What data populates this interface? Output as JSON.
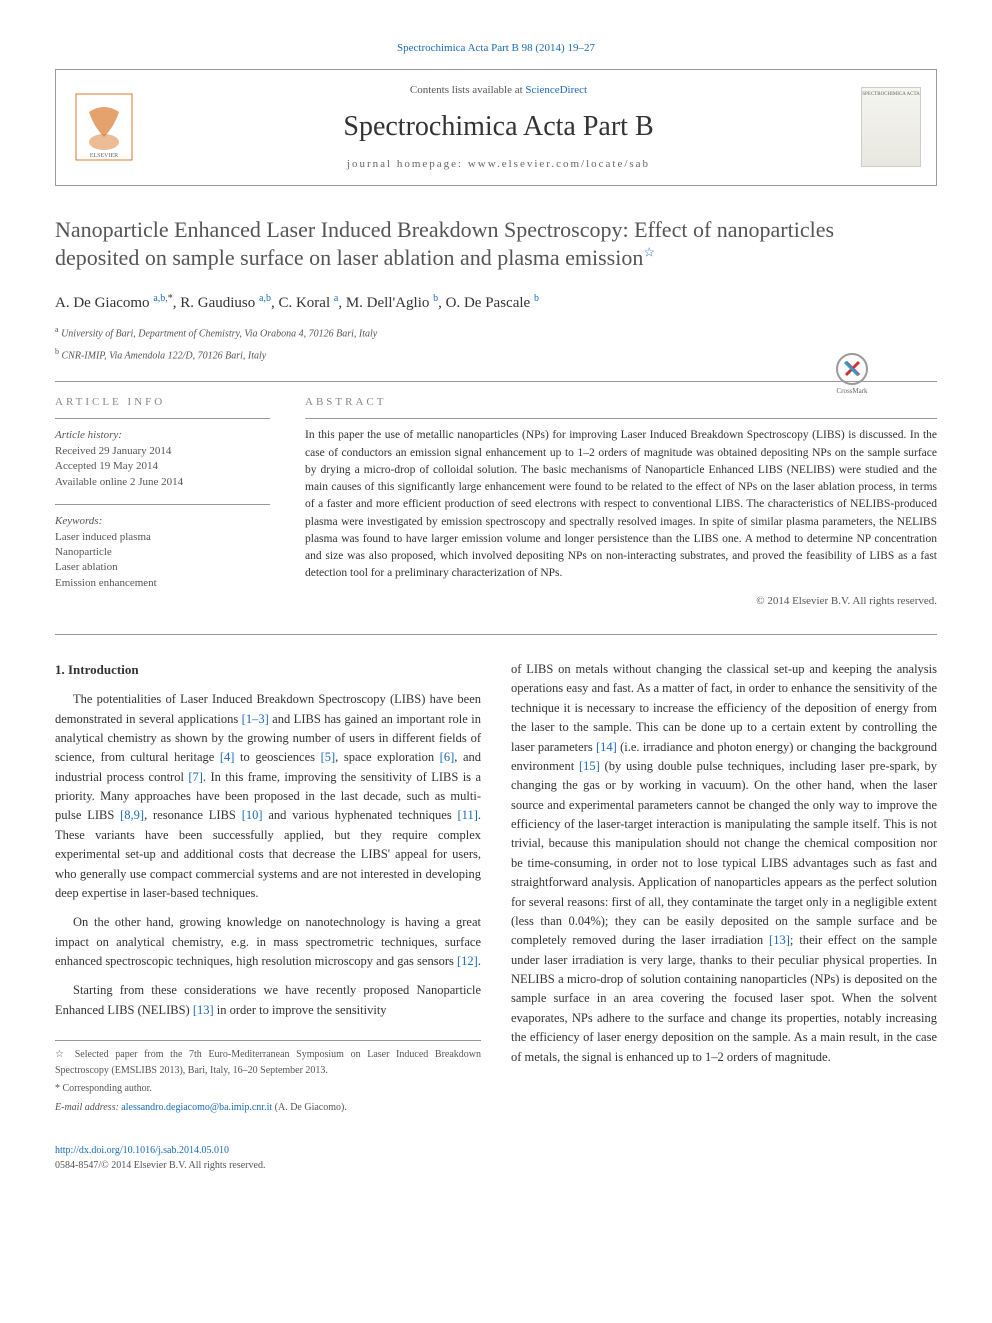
{
  "journal_ref": "Spectrochimica Acta Part B 98 (2014) 19–27",
  "header": {
    "contents_prefix": "Contents lists available at ",
    "contents_link": "ScienceDirect",
    "journal_title": "Spectrochimica Acta Part B",
    "homepage": "journal homepage: www.elsevier.com/locate/sab",
    "cover_label": "SPECTROCHIMICA ACTA"
  },
  "article_title": "Nanoparticle Enhanced Laser Induced Breakdown Spectroscopy: Effect of nanoparticles deposited on sample surface on laser ablation and plasma emission",
  "star_glyph": "☆",
  "authors_line": "A. De Giacomo",
  "authors": [
    {
      "name": "A. De Giacomo",
      "sup": "a,b,",
      "star": "*"
    },
    {
      "name": "R. Gaudiuso",
      "sup": "a,b"
    },
    {
      "name": "C. Koral",
      "sup": "a"
    },
    {
      "name": "M. Dell'Aglio",
      "sup": "b"
    },
    {
      "name": "O. De Pascale",
      "sup": "b"
    }
  ],
  "affiliations": [
    {
      "sup": "a",
      "text": "University of Bari, Department of Chemistry, Via Orabona 4, 70126 Bari, Italy"
    },
    {
      "sup": "b",
      "text": "CNR-IMIP, Via Amendola 122/D, 70126 Bari, Italy"
    }
  ],
  "info": {
    "article_info_heading": "ARTICLE INFO",
    "abstract_heading": "ABSTRACT",
    "history_label": "Article history:",
    "history": [
      "Received 29 January 2014",
      "Accepted 19 May 2014",
      "Available online 2 June 2014"
    ],
    "keywords_label": "Keywords:",
    "keywords": [
      "Laser induced plasma",
      "Nanoparticle",
      "Laser ablation",
      "Emission enhancement"
    ]
  },
  "abstract_text": "In this paper the use of metallic nanoparticles (NPs) for improving Laser Induced Breakdown Spectroscopy (LIBS) is discussed. In the case of conductors an emission signal enhancement up to 1–2 orders of magnitude was obtained depositing NPs on the sample surface by drying a micro-drop of colloidal solution. The basic mechanisms of Nanoparticle Enhanced LIBS (NELIBS) were studied and the main causes of this significantly large enhancement were found to be related to the effect of NPs on the laser ablation process, in terms of a faster and more efficient production of seed electrons with respect to conventional LIBS. The characteristics of NELIBS-produced plasma were investigated by emission spectroscopy and spectrally resolved images. In spite of similar plasma parameters, the NELIBS plasma was found to have larger emission volume and longer persistence than the LIBS one. A method to determine NP concentration and size was also proposed, which involved depositing NPs on non-interacting substrates, and proved the feasibility of LIBS as a fast detection tool for a preliminary characterization of NPs.",
  "copyright": "© 2014 Elsevier B.V. All rights reserved.",
  "intro_heading": "1. Introduction",
  "col1": {
    "p1_a": "The potentialities of Laser Induced Breakdown Spectroscopy (LIBS) have been demonstrated in several applications ",
    "r1": "[1–3]",
    "p1_b": " and LIBS has gained an important role in analytical chemistry as shown by the growing number of users in different fields of science, from cultural heritage ",
    "r2": "[4]",
    "p1_c": " to geosciences ",
    "r3": "[5]",
    "p1_d": ", space exploration ",
    "r4": "[6]",
    "p1_e": ", and industrial process control ",
    "r5": "[7]",
    "p1_f": ". In this frame, improving the sensitivity of LIBS is a priority. Many approaches have been proposed in the last decade, such as multi-pulse LIBS ",
    "r6": "[8,9]",
    "p1_g": ", resonance LIBS ",
    "r7": "[10]",
    "p1_h": " and various hyphenated techniques ",
    "r8": "[11]",
    "p1_i": ". These variants have been successfully applied, but they require complex experimental set-up and additional costs that decrease the LIBS' appeal for users, who generally use compact commercial systems and are not interested in developing deep expertise in laser-based techniques.",
    "p2_a": "On the other hand, growing knowledge on nanotechnology is having a great impact on analytical chemistry, e.g. in mass spectrometric techniques, surface enhanced spectroscopic techniques, high resolution microscopy and gas sensors ",
    "r9": "[12]",
    "p2_b": ".",
    "p3_a": "Starting from these considerations we have recently proposed Nanoparticle Enhanced LIBS (NELIBS) ",
    "r10": "[13]",
    "p3_b": " in order to improve the sensitivity"
  },
  "col2": {
    "p1_a": "of LIBS on metals without changing the classical set-up and keeping the analysis operations easy and fast. As a matter of fact, in order to enhance the sensitivity of the technique it is necessary to increase the efficiency of the deposition of energy from the laser to the sample. This can be done up to a certain extent by controlling the laser parameters ",
    "r1": "[14]",
    "p1_b": " (i.e. irradiance and photon energy) or changing the background environment ",
    "r2": "[15]",
    "p1_c": " (by using double pulse techniques, including laser pre-spark, by changing the gas or by working in vacuum). On the other hand, when the laser source and experimental parameters cannot be changed the only way to improve the efficiency of the laser-target interaction is manipulating the sample itself. This is not trivial, because this manipulation should not change the chemical composition nor be time-consuming, in order not to lose typical LIBS advantages such as fast and straightforward analysis. Application of nanoparticles appears as the perfect solution for several reasons: first of all, they contaminate the target only in a negligible extent (less than 0.04%); they can be easily deposited on the sample surface and be completely removed during the laser irradiation ",
    "r3": "[13]",
    "p1_d": "; their effect on the sample under laser irradiation is very large, thanks to their peculiar physical properties. In NELIBS a micro-drop of solution containing nanoparticles (NPs) is deposited on the sample surface in an area covering the focused laser spot. When the solvent evaporates, NPs adhere to the surface and change its properties, notably increasing the efficiency of laser energy deposition on the sample. As a main result, in the case of metals, the signal is enhanced up to 1–2 orders of magnitude."
  },
  "footnotes": {
    "star": "☆",
    "star_text": "Selected paper from the 7th Euro-Mediterranean Symposium on Laser Induced Breakdown Spectroscopy (EMSLIBS 2013), Bari, Italy, 16–20 September 2013.",
    "corr": "*",
    "corr_text": "Corresponding author.",
    "email_label": "E-mail address: ",
    "email": "alessandro.degiacomo@ba.imip.cnr.it",
    "email_suffix": " (A. De Giacomo)."
  },
  "footer": {
    "doi": "http://dx.doi.org/10.1016/j.sab.2014.05.010",
    "issn": "0584-8547/© 2014 Elsevier B.V. All rights reserved."
  },
  "colors": {
    "link": "#1a6bb8",
    "text": "#333333",
    "muted": "#555555",
    "border": "#999999"
  }
}
